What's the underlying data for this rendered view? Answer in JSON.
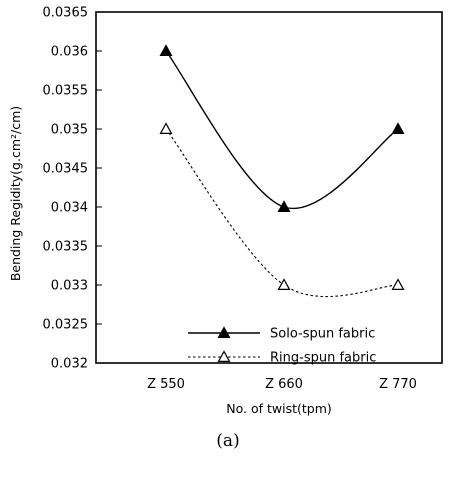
{
  "chart_data": {
    "type": "line",
    "title": "",
    "xlabel": "No. of twist(tpm)",
    "ylabel": "Bending Regidity(g.cm²/cm)",
    "caption": "(a)",
    "categories": [
      "Z 550",
      "Z 660",
      "Z 770"
    ],
    "ylim": [
      0.032,
      0.0365
    ],
    "yticks": [
      "0.032",
      "0.0325",
      "0.033",
      "0.0335",
      "0.034",
      "0.0345",
      "0.035",
      "0.0355",
      "0.036",
      "0.0365"
    ],
    "grid": false,
    "legend_position": "bottom-right",
    "series": [
      {
        "name": "Solo-spun fabric",
        "values": [
          0.036,
          0.034,
          0.035
        ],
        "marker": "filled-triangle",
        "line_style": "solid",
        "color": "#000000"
      },
      {
        "name": "Ring-spun fabric",
        "values": [
          0.035,
          0.033,
          0.033
        ],
        "marker": "open-triangle",
        "line_style": "dotted",
        "color": "#000000"
      }
    ]
  }
}
